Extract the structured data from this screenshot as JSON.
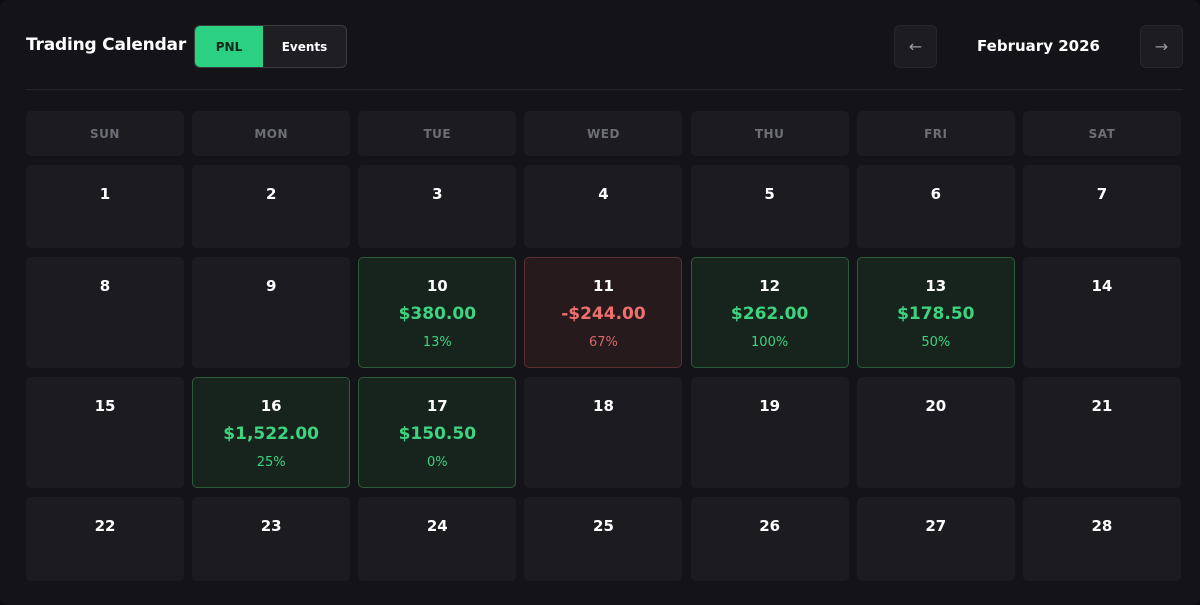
{
  "header": {
    "title": "Trading Calendar",
    "toggle": {
      "active": "PNL",
      "inactive": "Events"
    },
    "prev_icon": "←",
    "next_icon": "→",
    "month": "February 2026"
  },
  "weekdays": [
    "SUN",
    "MON",
    "TUE",
    "WED",
    "THU",
    "FRI",
    "SAT"
  ],
  "weeks": [
    [
      {
        "day": "1"
      },
      {
        "day": "2"
      },
      {
        "day": "3"
      },
      {
        "day": "4"
      },
      {
        "day": "5"
      },
      {
        "day": "6"
      },
      {
        "day": "7"
      }
    ],
    [
      {
        "day": "8"
      },
      {
        "day": "9"
      },
      {
        "day": "10",
        "pnl": "$380.00",
        "pct": "13%",
        "status": "win"
      },
      {
        "day": "11",
        "pnl": "-$244.00",
        "pct": "67%",
        "status": "loss"
      },
      {
        "day": "12",
        "pnl": "$262.00",
        "pct": "100%",
        "status": "win"
      },
      {
        "day": "13",
        "pnl": "$178.50",
        "pct": "50%",
        "status": "win"
      },
      {
        "day": "14"
      }
    ],
    [
      {
        "day": "15"
      },
      {
        "day": "16",
        "pnl": "$1,522.00",
        "pct": "25%",
        "status": "win"
      },
      {
        "day": "17",
        "pnl": "$150.50",
        "pct": "0%",
        "status": "win"
      },
      {
        "day": "18"
      },
      {
        "day": "19"
      },
      {
        "day": "20"
      },
      {
        "day": "21"
      }
    ],
    [
      {
        "day": "22"
      },
      {
        "day": "23"
      },
      {
        "day": "24"
      },
      {
        "day": "25"
      },
      {
        "day": "26"
      },
      {
        "day": "27"
      },
      {
        "day": "28"
      }
    ]
  ],
  "colors": {
    "accent": "#2bd083",
    "win": "#3fd27f",
    "loss": "#ef6f6f",
    "cell_bg": "#1b1b20"
  }
}
